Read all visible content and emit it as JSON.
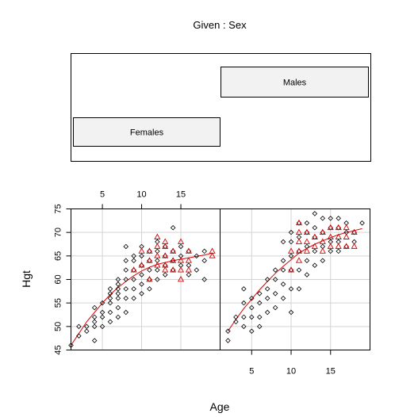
{
  "chart_data": {
    "type": "scatter",
    "title": "Given : Sex",
    "xlabel": "Age",
    "ylabel": "Hgt",
    "grid": true,
    "colors": {
      "point": "#000000",
      "second_point": "#dd0000",
      "smooth": "#dd0000",
      "strip": "#f2f2f2"
    },
    "markers": {
      "first": "open-diamond",
      "second": "open-triangle"
    },
    "given": [
      {
        "label": "Females",
        "range": [
          1,
          19
        ]
      },
      {
        "label": "Males",
        "range": [
          1,
          19
        ]
      }
    ],
    "panels": [
      {
        "given": "Females",
        "xlim": [
          1,
          20
        ],
        "ylim": [
          45,
          75
        ],
        "xticks": [
          5,
          10,
          15
        ],
        "yticks": [
          45,
          50,
          55,
          60,
          65,
          70,
          75
        ],
        "series": [
          {
            "marker": "open-diamond",
            "points": [
              [
                1,
                46
              ],
              [
                2,
                48
              ],
              [
                2,
                50
              ],
              [
                3,
                49
              ],
              [
                3,
                50
              ],
              [
                4,
                47
              ],
              [
                4,
                50
              ],
              [
                4,
                51
              ],
              [
                4,
                52
              ],
              [
                4,
                54
              ],
              [
                5,
                50
              ],
              [
                5,
                52
              ],
              [
                5,
                53
              ],
              [
                5,
                55
              ],
              [
                6,
                51
              ],
              [
                6,
                53
              ],
              [
                6,
                55
              ],
              [
                6,
                56
              ],
              [
                6,
                57
              ],
              [
                6,
                58
              ],
              [
                7,
                52
              ],
              [
                7,
                54
              ],
              [
                7,
                56
              ],
              [
                7,
                57
              ],
              [
                7,
                58
              ],
              [
                7,
                59
              ],
              [
                7,
                60
              ],
              [
                8,
                53
              ],
              [
                8,
                56
              ],
              [
                8,
                58
              ],
              [
                8,
                60
              ],
              [
                8,
                62
              ],
              [
                8,
                64
              ],
              [
                8,
                67
              ],
              [
                9,
                56
              ],
              [
                9,
                58
              ],
              [
                9,
                60
              ],
              [
                9,
                62
              ],
              [
                9,
                64
              ],
              [
                9,
                65
              ],
              [
                10,
                57
              ],
              [
                10,
                59
              ],
              [
                10,
                61
              ],
              [
                10,
                63
              ],
              [
                10,
                65
              ],
              [
                10,
                67
              ],
              [
                11,
                58
              ],
              [
                11,
                60
              ],
              [
                11,
                62
              ],
              [
                11,
                64
              ],
              [
                11,
                66
              ],
              [
                12,
                60
              ],
              [
                12,
                62
              ],
              [
                12,
                64
              ],
              [
                12,
                66
              ],
              [
                12,
                68
              ],
              [
                13,
                61
              ],
              [
                13,
                63
              ],
              [
                13,
                65
              ],
              [
                13,
                67
              ],
              [
                14,
                62
              ],
              [
                14,
                64
              ],
              [
                14,
                66
              ],
              [
                14,
                71
              ],
              [
                15,
                63
              ],
              [
                15,
                65
              ],
              [
                15,
                67
              ],
              [
                16,
                61
              ],
              [
                16,
                63
              ],
              [
                16,
                66
              ],
              [
                17,
                62
              ],
              [
                17,
                65
              ],
              [
                18,
                60
              ],
              [
                18,
                64
              ],
              [
                18,
                66
              ]
            ]
          },
          {
            "marker": "open-triangle",
            "points": [
              [
                9,
                62
              ],
              [
                10,
                63
              ],
              [
                10,
                66
              ],
              [
                11,
                60
              ],
              [
                11,
                64
              ],
              [
                11,
                66
              ],
              [
                12,
                63
              ],
              [
                12,
                65
              ],
              [
                12,
                67
              ],
              [
                12,
                69
              ],
              [
                13,
                62
              ],
              [
                13,
                63
              ],
              [
                13,
                65
              ],
              [
                13,
                67
              ],
              [
                13,
                68
              ],
              [
                14,
                62
              ],
              [
                14,
                64
              ],
              [
                14,
                66
              ],
              [
                15,
                60
              ],
              [
                15,
                62
              ],
              [
                15,
                64
              ],
              [
                15,
                68
              ],
              [
                16,
                62
              ],
              [
                16,
                64
              ],
              [
                16,
                66
              ],
              [
                19,
                65
              ],
              [
                19,
                66
              ]
            ]
          }
        ],
        "smooth": [
          [
            1,
            46
          ],
          [
            2,
            48.5
          ],
          [
            3,
            51
          ],
          [
            4,
            53
          ],
          [
            5,
            55
          ],
          [
            6,
            56.8
          ],
          [
            7,
            58.3
          ],
          [
            8,
            59.6
          ],
          [
            9,
            60.8
          ],
          [
            10,
            61.8
          ],
          [
            11,
            62.6
          ],
          [
            12,
            63.2
          ],
          [
            13,
            63.6
          ],
          [
            14,
            64
          ],
          [
            15,
            64.3
          ],
          [
            16,
            64.6
          ],
          [
            17,
            64.9
          ],
          [
            18,
            65.2
          ],
          [
            19,
            65.6
          ]
        ]
      },
      {
        "given": "Males",
        "xlim": [
          1,
          20
        ],
        "ylim": [
          45,
          75
        ],
        "xticks": [
          5,
          10,
          15
        ],
        "yticks": [
          45,
          50,
          55,
          60,
          65,
          70,
          75
        ],
        "series": [
          {
            "marker": "open-diamond",
            "points": [
              [
                2,
                47
              ],
              [
                2,
                49
              ],
              [
                3,
                51
              ],
              [
                3,
                52
              ],
              [
                4,
                50
              ],
              [
                4,
                52
              ],
              [
                4,
                55
              ],
              [
                4,
                58
              ],
              [
                5,
                49
              ],
              [
                5,
                52
              ],
              [
                5,
                54
              ],
              [
                5,
                56
              ],
              [
                6,
                50
              ],
              [
                6,
                52
              ],
              [
                6,
                55
              ],
              [
                6,
                57
              ],
              [
                7,
                53
              ],
              [
                7,
                56
              ],
              [
                7,
                58
              ],
              [
                7,
                60
              ],
              [
                8,
                54
              ],
              [
                8,
                57
              ],
              [
                8,
                60
              ],
              [
                8,
                62
              ],
              [
                9,
                56
              ],
              [
                9,
                59
              ],
              [
                9,
                62
              ],
              [
                9,
                64
              ],
              [
                9,
                68
              ],
              [
                10,
                53
              ],
              [
                10,
                58
              ],
              [
                10,
                62
              ],
              [
                10,
                65
              ],
              [
                10,
                68
              ],
              [
                10,
                70
              ],
              [
                11,
                58
              ],
              [
                11,
                62
              ],
              [
                11,
                66
              ],
              [
                11,
                69
              ],
              [
                11,
                72
              ],
              [
                12,
                61
              ],
              [
                12,
                64
              ],
              [
                12,
                67
              ],
              [
                12,
                70
              ],
              [
                12,
                72
              ],
              [
                13,
                63
              ],
              [
                13,
                66
              ],
              [
                13,
                69
              ],
              [
                13,
                71
              ],
              [
                13,
                74
              ],
              [
                14,
                64
              ],
              [
                14,
                67
              ],
              [
                14,
                70
              ],
              [
                14,
                73
              ],
              [
                15,
                66
              ],
              [
                15,
                68
              ],
              [
                15,
                71
              ],
              [
                15,
                73
              ],
              [
                16,
                66
              ],
              [
                16,
                68
              ],
              [
                16,
                71
              ],
              [
                16,
                73
              ],
              [
                17,
                67
              ],
              [
                17,
                70
              ],
              [
                17,
                72
              ],
              [
                18,
                68
              ],
              [
                18,
                70
              ],
              [
                19,
                72
              ]
            ]
          },
          {
            "marker": "open-triangle",
            "points": [
              [
                10,
                62
              ],
              [
                10,
                66
              ],
              [
                11,
                64
              ],
              [
                11,
                66
              ],
              [
                11,
                68
              ],
              [
                11,
                70
              ],
              [
                11,
                72
              ],
              [
                12,
                66
              ],
              [
                12,
                68
              ],
              [
                12,
                70
              ],
              [
                13,
                67
              ],
              [
                13,
                69
              ],
              [
                14,
                66
              ],
              [
                14,
                68
              ],
              [
                14,
                70
              ],
              [
                15,
                67
              ],
              [
                15,
                69
              ],
              [
                15,
                71
              ],
              [
                16,
                67
              ],
              [
                16,
                69
              ],
              [
                16,
                71
              ],
              [
                17,
                67
              ],
              [
                17,
                69
              ],
              [
                17,
                71
              ],
              [
                18,
                67
              ],
              [
                18,
                70
              ]
            ]
          }
        ],
        "smooth": [
          [
            2,
            49
          ],
          [
            3,
            51.5
          ],
          [
            4,
            53.8
          ],
          [
            5,
            55.8
          ],
          [
            6,
            57.8
          ],
          [
            7,
            59.6
          ],
          [
            8,
            61.3
          ],
          [
            9,
            62.8
          ],
          [
            10,
            64.2
          ],
          [
            11,
            65.6
          ],
          [
            12,
            66.6
          ],
          [
            13,
            67.5
          ],
          [
            14,
            68.2
          ],
          [
            15,
            68.9
          ],
          [
            16,
            69.5
          ],
          [
            17,
            70
          ],
          [
            18,
            70.4
          ],
          [
            19,
            70.8
          ]
        ]
      }
    ]
  }
}
